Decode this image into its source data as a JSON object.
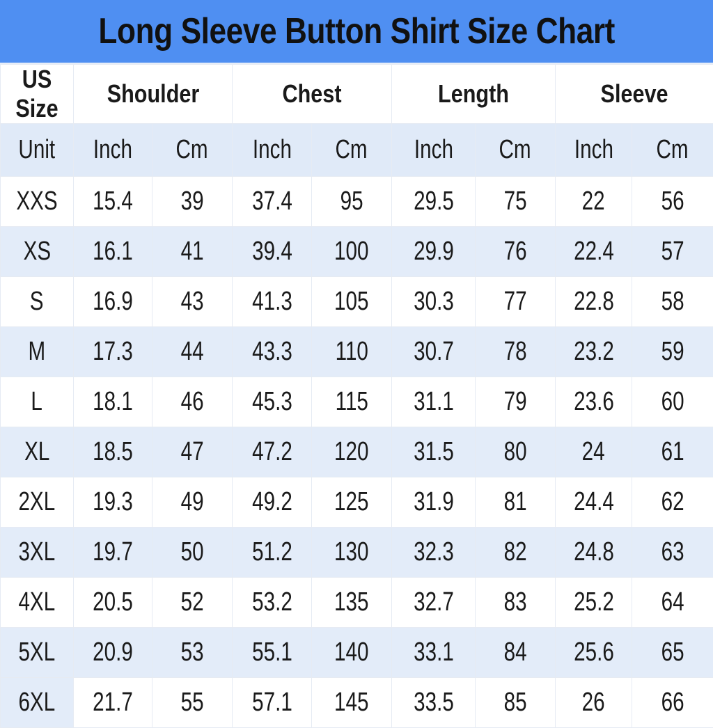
{
  "title": "Long Sleeve Button Shirt Size Chart",
  "colors": {
    "title_bar": "#4f8ff2",
    "alt_row": "#e3ecf9"
  },
  "header": [
    "US Size",
    "Shoulder",
    "Chest",
    "Length",
    "Sleeve"
  ],
  "units": [
    "Unit",
    "Inch",
    "Cm",
    "Inch",
    "Cm",
    "Inch",
    "Cm",
    "Inch",
    "Cm"
  ],
  "rows": [
    [
      "XXS",
      "15.4",
      "39",
      "37.4",
      "95",
      "29.5",
      "75",
      "22",
      "56"
    ],
    [
      "XS",
      "16.1",
      "41",
      "39.4",
      "100",
      "29.9",
      "76",
      "22.4",
      "57"
    ],
    [
      "S",
      "16.9",
      "43",
      "41.3",
      "105",
      "30.3",
      "77",
      "22.8",
      "58"
    ],
    [
      "M",
      "17.3",
      "44",
      "43.3",
      "110",
      "30.7",
      "78",
      "23.2",
      "59"
    ],
    [
      "L",
      "18.1",
      "46",
      "45.3",
      "115",
      "31.1",
      "79",
      "23.6",
      "60"
    ],
    [
      "XL",
      "18.5",
      "47",
      "47.2",
      "120",
      "31.5",
      "80",
      "24",
      "61"
    ],
    [
      "2XL",
      "19.3",
      "49",
      "49.2",
      "125",
      "31.9",
      "81",
      "24.4",
      "62"
    ],
    [
      "3XL",
      "19.7",
      "50",
      "51.2",
      "130",
      "32.3",
      "82",
      "24.8",
      "63"
    ],
    [
      "4XL",
      "20.5",
      "52",
      "53.2",
      "135",
      "32.7",
      "83",
      "25.2",
      "64"
    ],
    [
      "5XL",
      "20.9",
      "53",
      "55.1",
      "140",
      "33.1",
      "84",
      "25.6",
      "65"
    ],
    [
      "6XL",
      "21.7",
      "55",
      "57.1",
      "145",
      "33.5",
      "85",
      "26",
      "66"
    ]
  ]
}
